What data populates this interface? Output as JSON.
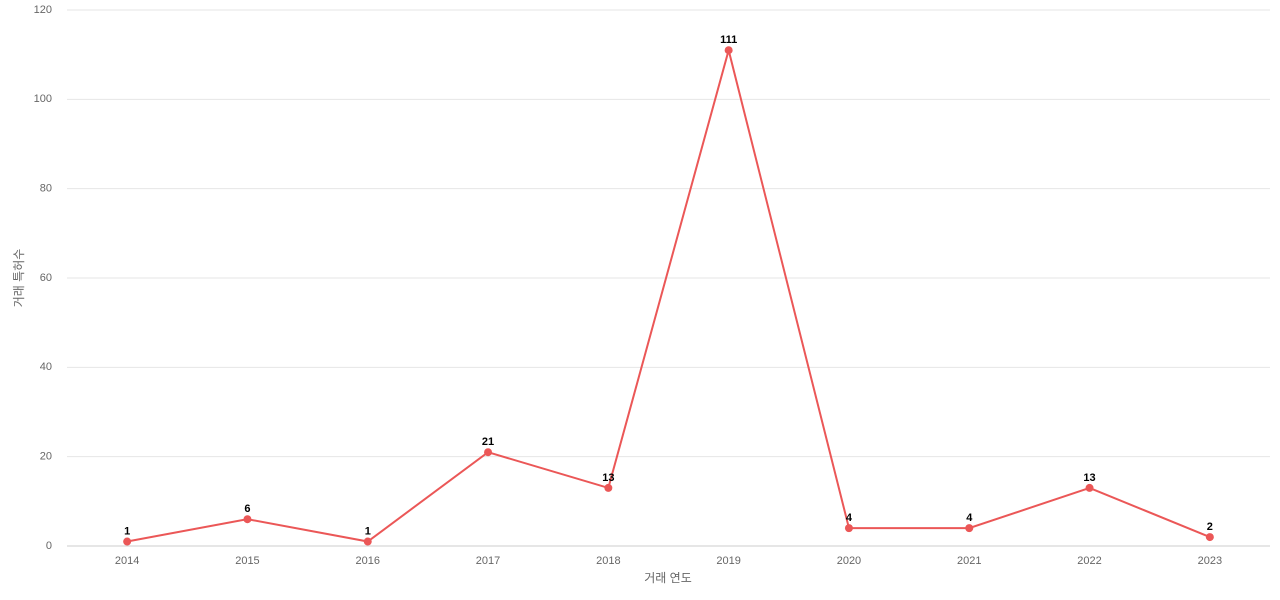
{
  "chart_data": {
    "type": "line",
    "x_label": "거래 연도",
    "y_label": "거래 특허수",
    "categories": [
      "2014",
      "2015",
      "2016",
      "2017",
      "2018",
      "2019",
      "2020",
      "2021",
      "2022",
      "2023"
    ],
    "series": [
      {
        "name": "거래 특허수",
        "color": "#eb5757",
        "values": [
          1,
          6,
          1,
          21,
          13,
          111,
          4,
          4,
          13,
          2
        ]
      }
    ],
    "ylim": [
      0,
      120
    ],
    "yticks": [
      0,
      20,
      40,
      60,
      80,
      100,
      120
    ],
    "grid": true
  }
}
